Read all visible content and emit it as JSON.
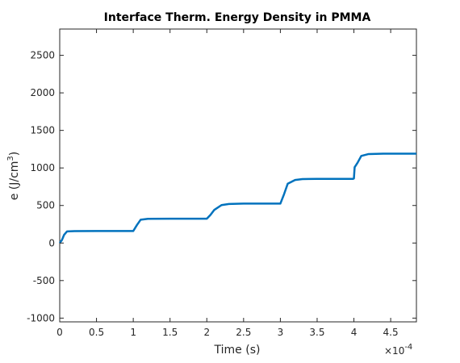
{
  "chart_data": {
    "type": "line",
    "title": "Interface Therm. Energy Density in PMMA",
    "xlabel": "Time (s)",
    "ylabel_base": "e (J/cm",
    "ylabel_sup": "3",
    "ylabel_close": ")",
    "x_exponent_base": "×10",
    "x_exponent_power": "-4",
    "xlim": [
      0,
      4.85
    ],
    "ylim": [
      -1050,
      2850
    ],
    "x_ticks": [
      0,
      0.5,
      1,
      1.5,
      2,
      2.5,
      3,
      3.5,
      4,
      4.5
    ],
    "x_tick_labels": [
      "0",
      "0.5",
      "1",
      "1.5",
      "2",
      "2.5",
      "3",
      "3.5",
      "4",
      "4.5"
    ],
    "y_ticks": [
      -1000,
      -500,
      0,
      500,
      1000,
      1500,
      2000,
      2500
    ],
    "y_tick_labels": [
      "-1000",
      "-500",
      "0",
      "500",
      "1000",
      "1500",
      "2000",
      "2500"
    ],
    "grid": false,
    "series": [
      {
        "color": "#0072BD",
        "x": [
          0,
          0.03,
          0.06,
          0.1,
          0.2,
          0.5,
          1.0,
          1.05,
          1.1,
          1.2,
          1.5,
          2.0,
          2.05,
          2.1,
          2.2,
          2.3,
          2.5,
          3.0,
          3.05,
          3.1,
          3.2,
          3.3,
          3.5,
          3.99,
          4.0,
          4.01,
          4.05,
          4.1,
          4.2,
          4.4,
          4.85
        ],
        "y": [
          0,
          40,
          110,
          155,
          158,
          160,
          160,
          240,
          310,
          322,
          324,
          324,
          375,
          440,
          505,
          520,
          525,
          525,
          650,
          790,
          840,
          852,
          855,
          855,
          860,
          1010,
          1070,
          1160,
          1185,
          1190,
          1190
        ]
      }
    ]
  }
}
